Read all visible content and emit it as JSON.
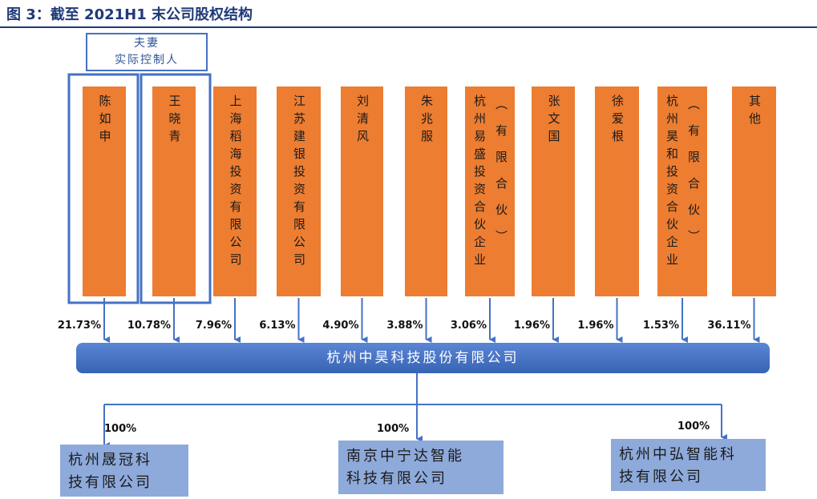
{
  "header": {
    "title": "图 3：截至 2021H1 末公司股权结构"
  },
  "controller_group": {
    "label": [
      "夫妻",
      "实际控制人"
    ]
  },
  "shareholders": [
    {
      "name": [
        "陈如申"
      ],
      "share": "21.73%"
    },
    {
      "name": [
        "王晓青"
      ],
      "share": "10.78%"
    },
    {
      "name": [
        "上海稻海投资有限公司"
      ],
      "share": "7.96%"
    },
    {
      "name": [
        "江苏建银投资有限公司"
      ],
      "share": "6.13%"
    },
    {
      "name": [
        "刘清风"
      ],
      "share": "4.90%"
    },
    {
      "name": [
        "朱兆服"
      ],
      "share": "3.88%"
    },
    {
      "name": [
        "杭州易盛投资合伙企业",
        "（有限合伙）"
      ],
      "share": "3.06%"
    },
    {
      "name": [
        "张文国"
      ],
      "share": "1.96%"
    },
    {
      "name": [
        "徐爱根"
      ],
      "share": "1.96%"
    },
    {
      "name": [
        "杭州昊和投资合伙企业",
        "（有限合伙）"
      ],
      "share": "1.53%"
    },
    {
      "name": [
        "其他"
      ],
      "share": "36.11%"
    }
  ],
  "company": {
    "name": "杭州中昊科技股份有限公司"
  },
  "subsidiaries": [
    {
      "name": [
        "杭州晟冠科",
        "技有限公司"
      ],
      "share": "100%"
    },
    {
      "name": [
        "南京中宁达智能",
        "科技有限公司"
      ],
      "share": "100%"
    },
    {
      "name": [
        "杭州中弘智能科",
        "技有限公司"
      ],
      "share": "100%"
    }
  ]
}
